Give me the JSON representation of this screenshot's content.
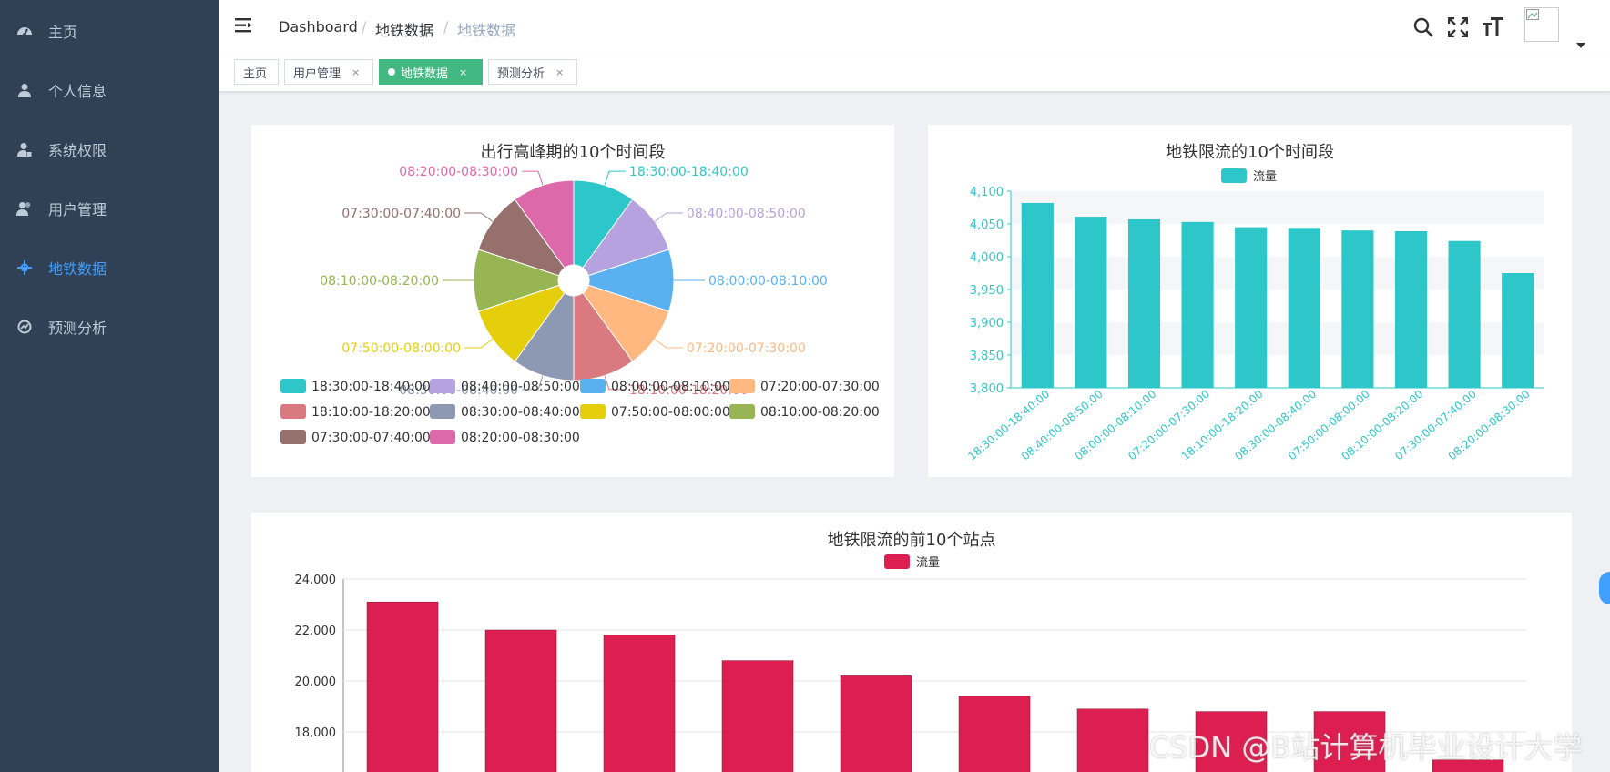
{
  "sidebar": {
    "items": [
      {
        "label": "主页",
        "icon": "dashboard-icon"
      },
      {
        "label": "个人信息",
        "icon": "user-icon"
      },
      {
        "label": "系统权限",
        "icon": "user-lock-icon"
      },
      {
        "label": "用户管理",
        "icon": "users-icon"
      },
      {
        "label": "地铁数据",
        "icon": "crosshair-icon"
      },
      {
        "label": "预测分析",
        "icon": "chart-icon"
      }
    ],
    "active_index": 4
  },
  "header": {
    "breadcrumb": [
      "Dashboard",
      "地铁数据",
      "地铁数据"
    ],
    "separator": "/"
  },
  "tags": [
    {
      "label": "主页",
      "closable": false,
      "active": false
    },
    {
      "label": "用户管理",
      "closable": true,
      "active": false
    },
    {
      "label": "地铁数据",
      "closable": true,
      "active": true
    },
    {
      "label": "预测分析",
      "closable": true,
      "active": false
    }
  ],
  "tag_close_glyph": "×",
  "watermark": "CSDN @B站计算机毕业设计大学",
  "colors": {
    "sidebar_bg": "#304156",
    "active_text": "#409eff",
    "active_tag": "#42b983",
    "bar_teal": "#2ec7c9",
    "bar_red": "#dc1e50"
  },
  "chart_data": [
    {
      "type": "pie",
      "title": "出行高峰期的10个时间段",
      "categories": [
        "18:30:00-18:40:00",
        "08:40:00-08:50:00",
        "08:00:00-08:10:00",
        "07:20:00-07:30:00",
        "18:10:00-18:20:00",
        "08:30:00-08:40:00",
        "07:50:00-08:00:00",
        "08:10:00-08:20:00",
        "07:30:00-07:40:00",
        "08:20:00-08:30:00"
      ],
      "values": [
        10,
        10,
        10,
        10,
        10,
        10,
        10,
        10,
        10,
        10
      ],
      "colors": [
        "#2ec7c9",
        "#b6a2de",
        "#5ab1ef",
        "#ffb980",
        "#d87a80",
        "#8d98b3",
        "#e5cf0d",
        "#97b552",
        "#95706d",
        "#dc69aa"
      ],
      "legend": "bottom"
    },
    {
      "type": "bar",
      "title": "地铁限流的10个时间段",
      "series": [
        {
          "name": "流量",
          "values": [
            4082,
            4061,
            4057,
            4053,
            4045,
            4044,
            4040,
            4039,
            4024,
            3975
          ]
        }
      ],
      "categories": [
        "18:30:00-18:40:00",
        "08:40:00-08:50:00",
        "08:00:00-08:10:00",
        "07:20:00-07:30:00",
        "18:10:00-18:20:00",
        "08:30:00-08:40:00",
        "07:50:00-08:00:00",
        "08:10:00-08:20:00",
        "07:30:00-07:40:00",
        "08:20:00-08:30:00"
      ],
      "yticks": [
        "3,800",
        "3,850",
        "3,900",
        "3,950",
        "4,000",
        "4,050",
        "4,100"
      ],
      "ylim": [
        3800,
        4100
      ],
      "legend": "top-center",
      "color": "#2ec7c9"
    },
    {
      "type": "bar",
      "title": "地铁限流的前10个站点",
      "series": [
        {
          "name": "流量",
          "values": [
            23100,
            22000,
            21800,
            20800,
            20200,
            19400,
            18900,
            18800,
            18800,
            16900
          ]
        }
      ],
      "yticks": [
        "18,000",
        "20,000",
        "22,000",
        "24,000"
      ],
      "ylim": [
        16000,
        24000
      ],
      "legend": "top-center",
      "color": "#dc1e50"
    }
  ]
}
